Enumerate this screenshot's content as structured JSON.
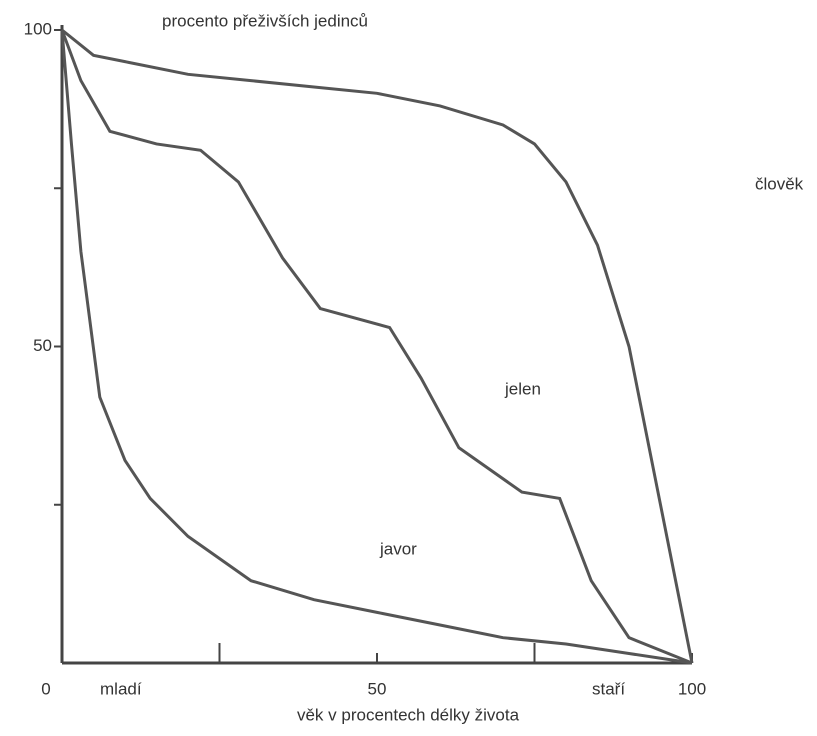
{
  "chart_data": {
    "type": "line",
    "title": "procento přeživších jedinců",
    "x_label": "věk v procentech délky života",
    "annotations": [
      "mladí",
      "staří"
    ],
    "xlim": [
      0,
      100
    ],
    "ylim": [
      0,
      100
    ],
    "xticks": [
      0,
      50,
      100
    ],
    "yticks": [
      50,
      100
    ],
    "xminor_ticks": [
      25,
      75
    ],
    "yminor_ticks": [
      25,
      75
    ],
    "series": [
      {
        "name": "člověk",
        "color": "#555555",
        "x": [
          0,
          5,
          10,
          20,
          30,
          40,
          50,
          60,
          70,
          75,
          80,
          85,
          90,
          95,
          100
        ],
        "values": [
          100,
          96,
          95,
          93,
          92,
          91,
          90,
          88,
          85,
          82,
          76,
          66,
          50,
          25,
          0
        ]
      },
      {
        "name": "jelen",
        "color": "#555555",
        "x": [
          0,
          3,
          7.6,
          15,
          22,
          28,
          35,
          41,
          52,
          57,
          63,
          73,
          79,
          84,
          90,
          100
        ],
        "values": [
          100,
          92,
          84,
          82,
          81,
          76,
          64,
          56,
          53,
          45,
          34,
          27,
          26,
          13,
          4,
          0
        ]
      },
      {
        "name": "javor",
        "color": "#555555",
        "x": [
          0,
          1.5,
          3,
          6,
          10,
          14,
          20,
          30,
          40,
          50,
          60,
          70,
          80,
          90,
          100
        ],
        "values": [
          100,
          82,
          65,
          42,
          32,
          26,
          20,
          13,
          10,
          8,
          6,
          4,
          3,
          1.5,
          0
        ]
      }
    ]
  }
}
